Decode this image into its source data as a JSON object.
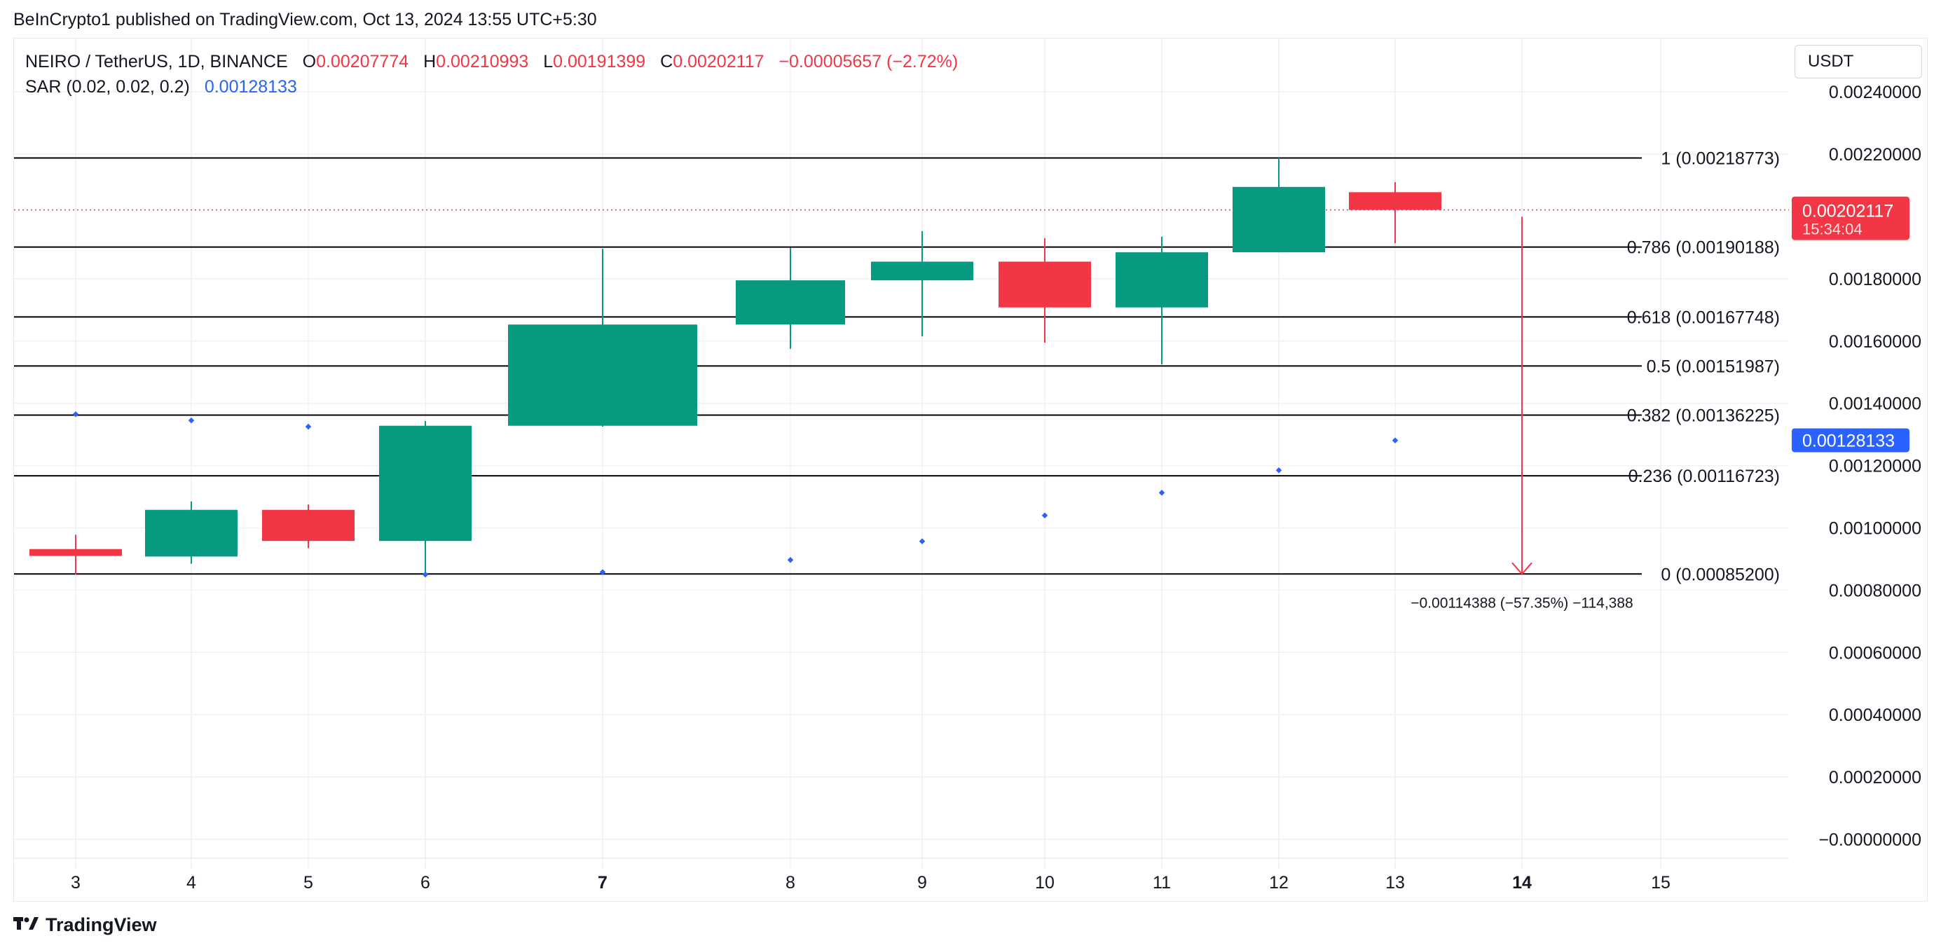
{
  "attribution": "BeInCrypto1 published on TradingView.com, Oct 13, 2024 13:55 UTC+5:30",
  "legend": {
    "symbol": "NEIRO / TetherUS, 1D, BINANCE",
    "o_label": "O",
    "o_value": "0.00207774",
    "h_label": "H",
    "h_value": "0.00210993",
    "l_label": "L",
    "l_value": "0.00191399",
    "c_label": "C",
    "c_value": "0.00202117",
    "change": "−0.00005657 (−2.72%)",
    "indicator": "SAR (0.02, 0.02, 0.2)",
    "indicator_value": "0.00128133"
  },
  "currency": "USDT",
  "footer": {
    "brand": "TradingView"
  },
  "colors": {
    "up": "#089981",
    "down": "#f23645",
    "sar": "#2962ff",
    "fib": "#000000",
    "grid": "#f0f1f3"
  },
  "chart_data": {
    "type": "candlestick",
    "y_axis_ticks": [
      0.0024,
      0.0022,
      0.0018,
      0.0016,
      0.0014,
      0.0012,
      0.001,
      0.0008,
      0.0006,
      0.0004,
      0.0002,
      0.0
    ],
    "y_axis_tick_labels": [
      "0.00240000",
      "0.00220000",
      "0.00180000",
      "0.00160000",
      "0.00140000",
      "0.00120000",
      "0.00100000",
      "0.00080000",
      "0.00060000",
      "0.00040000",
      "0.00020000",
      "−0.00000000"
    ],
    "x_axis_ticks": [
      {
        "x": 3,
        "label": "3",
        "bold": false
      },
      {
        "x": 4,
        "label": "4",
        "bold": false
      },
      {
        "x": 5,
        "label": "5",
        "bold": false
      },
      {
        "x": 6,
        "label": "6",
        "bold": false
      },
      {
        "x": 7,
        "label": "7",
        "bold": true
      },
      {
        "x": 8,
        "label": "8",
        "bold": false
      },
      {
        "x": 9,
        "label": "9",
        "bold": false
      },
      {
        "x": 10,
        "label": "10",
        "bold": false
      },
      {
        "x": 11,
        "label": "11",
        "bold": false
      },
      {
        "x": 12,
        "label": "12",
        "bold": false
      },
      {
        "x": 13,
        "label": "13",
        "bold": false
      },
      {
        "x": 14,
        "label": "14",
        "bold": true
      },
      {
        "x": 15,
        "label": "15",
        "bold": false
      }
    ],
    "candles": [
      {
        "day": 3,
        "open": 0.000932,
        "high": 0.000978,
        "low": 0.00085,
        "close": 0.00091
      },
      {
        "day": 4,
        "open": 0.000908,
        "high": 0.001085,
        "low": 0.000885,
        "close": 0.001058
      },
      {
        "day": 5,
        "open": 0.001058,
        "high": 0.001075,
        "low": 0.000935,
        "close": 0.000958
      },
      {
        "day": 6,
        "open": 0.000958,
        "high": 0.001343,
        "low": 0.00085,
        "close": 0.001328
      },
      {
        "day": 7,
        "open": 0.001328,
        "high": 0.001896,
        "low": 0.001325,
        "close": 0.001653
      },
      {
        "day": 8,
        "open": 0.001653,
        "high": 0.0019,
        "low": 0.001575,
        "close": 0.001795
      },
      {
        "day": 9,
        "open": 0.001795,
        "high": 0.001953,
        "low": 0.001615,
        "close": 0.001855
      },
      {
        "day": 10,
        "open": 0.001855,
        "high": 0.00193,
        "low": 0.001595,
        "close": 0.001708
      },
      {
        "day": 11,
        "open": 0.001708,
        "high": 0.001935,
        "low": 0.001525,
        "close": 0.001885
      },
      {
        "day": 12,
        "open": 0.001885,
        "high": 0.002188,
        "low": 0.001885,
        "close": 0.002095
      },
      {
        "day": 13,
        "open": 0.002078,
        "high": 0.00211,
        "low": 0.001914,
        "close": 0.002021
      }
    ],
    "sar": [
      {
        "day": 3,
        "value": 0.001365
      },
      {
        "day": 4,
        "value": 0.001345
      },
      {
        "day": 5,
        "value": 0.001325
      },
      {
        "day": 6,
        "value": 0.00085
      },
      {
        "day": 7,
        "value": 0.000858
      },
      {
        "day": 8,
        "value": 0.000897
      },
      {
        "day": 9,
        "value": 0.000957
      },
      {
        "day": 10,
        "value": 0.00104
      },
      {
        "day": 11,
        "value": 0.001113
      },
      {
        "day": 12,
        "value": 0.001185
      },
      {
        "day": 13,
        "value": 0.001281
      }
    ],
    "fib_levels": [
      {
        "price": 0.00218773,
        "label": "1 (0.00218773)"
      },
      {
        "price": 0.00190188,
        "label": "0.786 (0.00190188)"
      },
      {
        "price": 0.00167748,
        "label": "0.618 (0.00167748)"
      },
      {
        "price": 0.00151987,
        "label": "0.5 (0.00151987)"
      },
      {
        "price": 0.00136225,
        "label": "0.382 (0.00136225)"
      },
      {
        "price": 0.00116723,
        "label": "0.236 (0.00116723)"
      },
      {
        "price": 0.000852,
        "label": "0 (0.00085200)"
      }
    ],
    "projection": {
      "day": 14,
      "from": 0.001999,
      "to": 0.000852,
      "label": "−0.00114388 (−57.35%) −114,388"
    },
    "last_price": {
      "value": 0.00202117,
      "label": "0.00202117",
      "countdown": "15:34:04"
    },
    "sar_price": {
      "value": 0.00128133,
      "label": "0.00128133"
    }
  }
}
